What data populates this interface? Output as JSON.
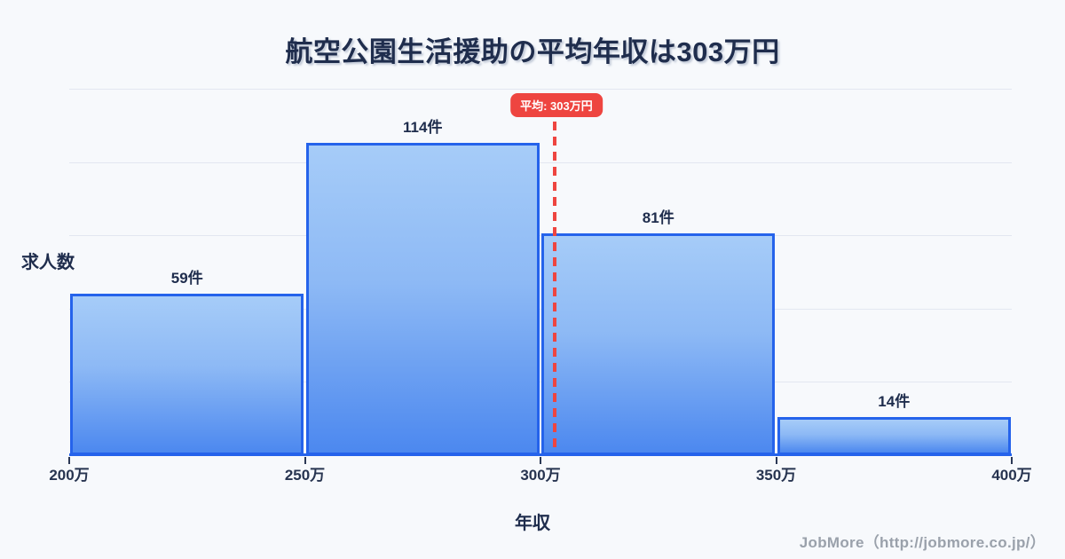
{
  "title": "航空公園生活援助の平均年収は303万円",
  "chart_data": {
    "type": "bar",
    "subtype": "histogram",
    "title": "航空公園生活援助の平均年収は303万円",
    "xlabel": "年収",
    "ylabel": "求人数",
    "xlim": [
      200,
      400
    ],
    "grid": true,
    "x_ticks": [
      {
        "value": 200,
        "label": "200万"
      },
      {
        "value": 250,
        "label": "250万"
      },
      {
        "value": 300,
        "label": "300万"
      },
      {
        "value": 350,
        "label": "350万"
      },
      {
        "value": 400,
        "label": "400万"
      }
    ],
    "bins": [
      {
        "range": [
          200,
          250
        ],
        "count": 59,
        "label": "59件"
      },
      {
        "range": [
          250,
          300
        ],
        "count": 114,
        "label": "114件"
      },
      {
        "range": [
          300,
          350
        ],
        "count": 81,
        "label": "81件"
      },
      {
        "range": [
          350,
          400
        ],
        "count": 14,
        "label": "14件"
      }
    ],
    "mean": {
      "value": 303,
      "label": "平均: 303万円"
    },
    "colors": {
      "background": "#f7f9fc",
      "bar_border": "#2563eb",
      "bar_fill_top": "#a6ccf8",
      "bar_fill_bottom": "#4c88ef",
      "mean_line": "#ee4540",
      "badge_background": "#ee4540",
      "badge_text": "#ffffff",
      "title_text": "#1f2d4d",
      "axis_text": "#273450",
      "grid_line": "#e3e7f1",
      "footer_text": "#9aa1ab"
    }
  },
  "footer": {
    "credit": "JobMore（http://jobmore.co.jp/）"
  }
}
